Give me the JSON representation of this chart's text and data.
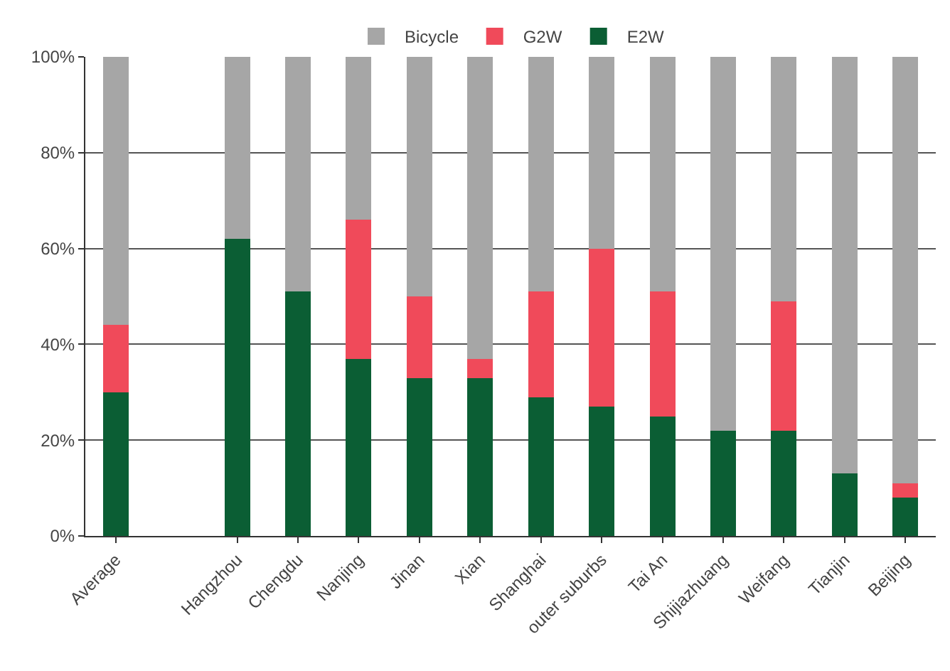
{
  "chart_data": {
    "type": "bar",
    "stacked": true,
    "categories": [
      "Average",
      null,
      "Hangzhou",
      "Chengdu",
      "Nanjing",
      "Jinan",
      "Xian",
      "Shanghai",
      "outer suburbs",
      "Tai An",
      "Shijiazhuang",
      "Weifang",
      "Tianjin",
      "Beijing"
    ],
    "series": [
      {
        "name": "E2W",
        "color": "#0b5e34",
        "values": [
          30,
          null,
          62,
          51,
          37,
          33,
          33,
          29,
          27,
          25,
          22,
          22,
          13,
          8
        ]
      },
      {
        "name": "G2W",
        "color": "#f04a5a",
        "values": [
          14,
          null,
          0,
          0,
          29,
          17,
          4,
          22,
          33,
          26,
          0,
          27,
          0,
          3
        ]
      },
      {
        "name": "Bicycle",
        "color": "#a6a6a6",
        "values": [
          56,
          null,
          38,
          49,
          34,
          50,
          63,
          49,
          40,
          49,
          78,
          51,
          87,
          89
        ]
      }
    ],
    "ylim": [
      0,
      100
    ],
    "yticks": [
      {
        "value": 0,
        "label": "0%"
      },
      {
        "value": 20,
        "label": "20%"
      },
      {
        "value": 40,
        "label": "40%"
      },
      {
        "value": 60,
        "label": "60%"
      },
      {
        "value": 80,
        "label": "80%"
      },
      {
        "value": 100,
        "label": "100%"
      }
    ],
    "grid": "y",
    "legend": "top"
  }
}
